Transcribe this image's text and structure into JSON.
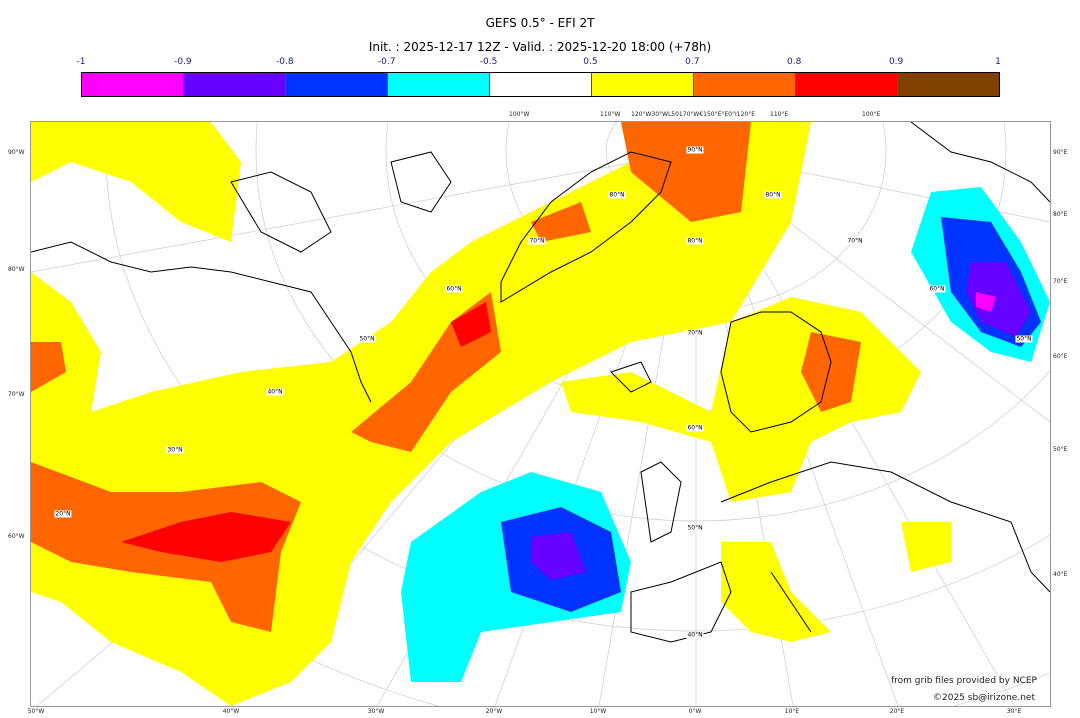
{
  "title": "GEFS 0.5° - EFI 2T",
  "subtitle": "Init. : 2025-12-17 12Z - Valid. : 2025-12-20 18:00 (+78h)",
  "colorbar": {
    "tick_labels": [
      "-1",
      "-0.9",
      "-0.8",
      "-0.7",
      "-0.5",
      "0.5",
      "0.7",
      "0.8",
      "0.9",
      "1"
    ],
    "colors": [
      "#ff00ff",
      "#6600ff",
      "#0033ff",
      "#00ffff",
      "#ffffff",
      "#ffff00",
      "#ff6600",
      "#ff0000",
      "#804000"
    ]
  },
  "axes": {
    "left": [
      "90°W",
      "80°W",
      "70°W",
      "60°W"
    ],
    "right": [
      "90°E",
      "80°E",
      "70°E",
      "60°E",
      "50°E",
      "40°E"
    ],
    "bottom": [
      "50°W",
      "40°W",
      "30°W",
      "20°W",
      "10°W",
      "0°W",
      "10°E",
      "20°E",
      "30°E"
    ],
    "top": [
      "100°W",
      "110°W",
      "120°W30°WL50170°W€150°E°E0°I120°E",
      "110°E",
      "100°E"
    ]
  },
  "grid_labels": [
    "90°N",
    "80°N",
    "70°N",
    "60°N",
    "50°N",
    "40°N",
    "70°N",
    "60°N",
    "50°N",
    "40°N",
    "30°N",
    "20°N",
    "80°N",
    "80°N",
    "70°N",
    "60°N",
    "50°N"
  ],
  "credits": {
    "source": "from grib files provided by NCEP",
    "copyright": "©2025 sb@irizone.net"
  }
}
